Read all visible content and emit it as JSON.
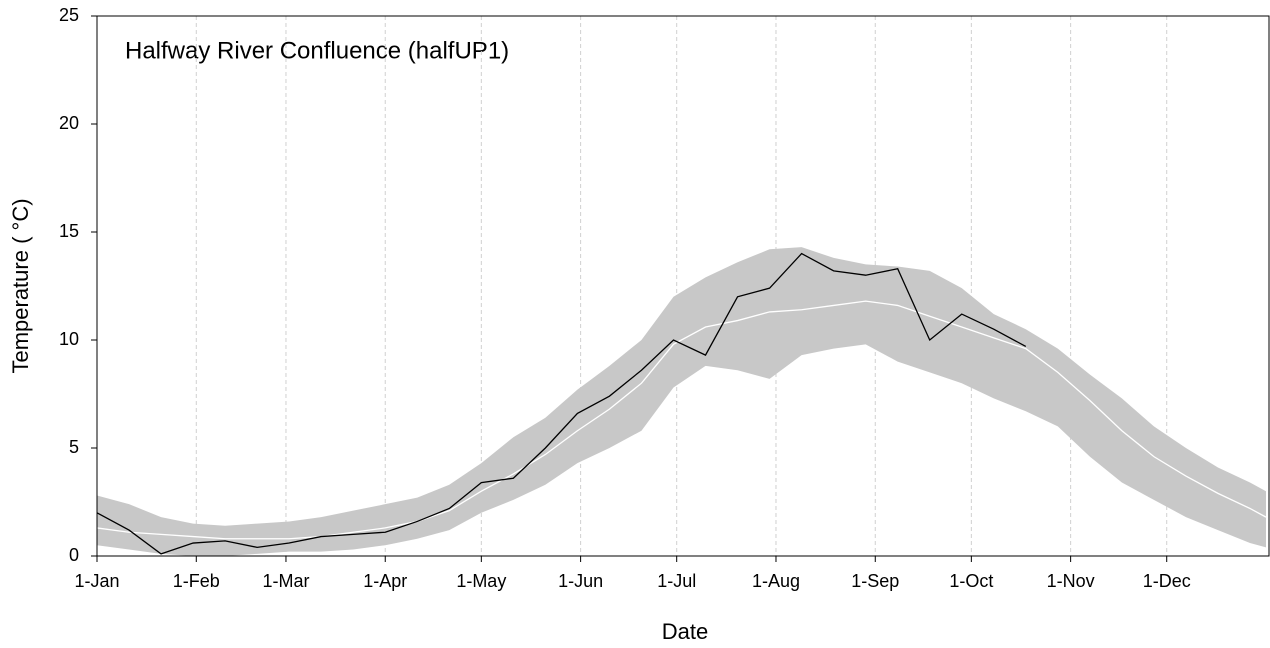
{
  "chart_data": {
    "type": "line",
    "title": "Halfway River Confluence (halfUP1)",
    "x_label": "Date",
    "y_label": "Temperature ( °C)",
    "x": [
      1,
      11,
      21,
      31,
      41,
      51,
      61,
      71,
      81,
      91,
      101,
      111,
      121,
      131,
      141,
      151,
      161,
      171,
      181,
      191,
      201,
      211,
      221,
      231,
      241,
      251,
      261,
      271,
      281,
      291,
      301,
      311,
      321,
      331,
      341,
      351,
      361,
      366
    ],
    "band": {
      "color": "#c8c8c8",
      "lower": [
        0.5,
        0.3,
        0.1,
        0.0,
        0.0,
        0.1,
        0.2,
        0.2,
        0.3,
        0.5,
        0.8,
        1.2,
        2.0,
        2.6,
        3.3,
        4.3,
        5.0,
        5.8,
        7.8,
        8.8,
        8.6,
        8.2,
        9.3,
        9.6,
        9.8,
        9.0,
        8.5,
        8.0,
        7.3,
        6.7,
        6.0,
        4.6,
        3.4,
        2.6,
        1.8,
        1.2,
        0.6,
        0.4
      ],
      "upper": [
        2.8,
        2.4,
        1.8,
        1.5,
        1.4,
        1.5,
        1.6,
        1.8,
        2.1,
        2.4,
        2.7,
        3.3,
        4.3,
        5.5,
        6.4,
        7.7,
        8.8,
        10.0,
        12.0,
        12.9,
        13.6,
        14.2,
        14.3,
        13.8,
        13.5,
        13.4,
        13.2,
        12.4,
        11.2,
        10.5,
        9.6,
        8.4,
        7.3,
        6.0,
        5.0,
        4.1,
        3.4,
        3.0
      ]
    },
    "series": [
      {
        "color": "#ffffff",
        "values": [
          1.3,
          1.1,
          1.0,
          0.9,
          0.8,
          0.8,
          0.8,
          0.9,
          1.1,
          1.3,
          1.6,
          2.1,
          3.0,
          3.8,
          4.7,
          5.8,
          6.8,
          8.0,
          9.8,
          10.6,
          10.9,
          11.3,
          11.4,
          11.6,
          11.8,
          11.6,
          11.1,
          10.6,
          10.1,
          9.6,
          8.5,
          7.2,
          5.8,
          4.6,
          3.7,
          2.9,
          2.2,
          1.8
        ]
      },
      {
        "color": "#000000",
        "values": [
          2.0,
          1.2,
          0.1,
          0.6,
          0.7,
          0.4,
          0.6,
          0.9,
          1.0,
          1.1,
          1.6,
          2.2,
          3.4,
          3.6,
          5.0,
          6.6,
          7.4,
          8.6,
          10.0,
          9.3,
          12.0,
          12.4,
          14.0,
          13.2,
          13.0,
          13.3,
          10.0,
          11.2,
          10.5,
          9.7,
          null,
          null,
          null,
          null,
          null,
          null,
          null,
          null
        ]
      }
    ],
    "xlim": [
      1,
      366
    ],
    "xticks": [
      {
        "value": 1,
        "label": "1-Jan"
      },
      {
        "value": 32,
        "label": "1-Feb"
      },
      {
        "value": 60,
        "label": "1-Mar"
      },
      {
        "value": 91,
        "label": "1-Apr"
      },
      {
        "value": 121,
        "label": "1-May"
      },
      {
        "value": 152,
        "label": "1-Jun"
      },
      {
        "value": 182,
        "label": "1-Jul"
      },
      {
        "value": 213,
        "label": "1-Aug"
      },
      {
        "value": 244,
        "label": "1-Sep"
      },
      {
        "value": 274,
        "label": "1-Oct"
      },
      {
        "value": 305,
        "label": "1-Nov"
      },
      {
        "value": 335,
        "label": "1-Dec"
      }
    ],
    "ylim": [
      0,
      25
    ],
    "yticks": [
      0,
      5,
      10,
      15,
      20,
      25
    ],
    "grid": true
  }
}
